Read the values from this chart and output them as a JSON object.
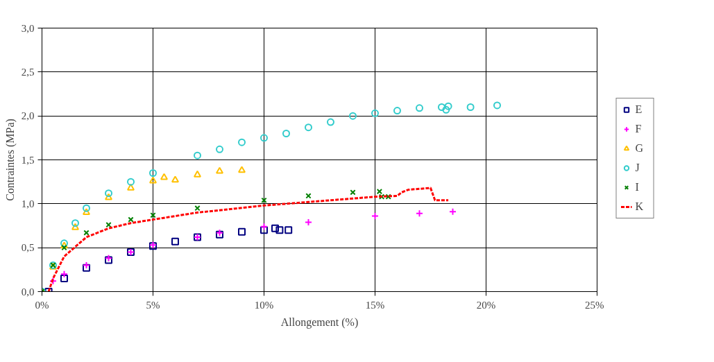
{
  "chart_data": {
    "type": "scatter",
    "xlabel": "Allongement (%)",
    "ylabel": "Contraintes (MPa)",
    "xlim": [
      0,
      25
    ],
    "ylim": [
      0,
      3
    ],
    "xticks": [
      {
        "value": 0,
        "label": "0%"
      },
      {
        "value": 5,
        "label": "5%"
      },
      {
        "value": 10,
        "label": "10%"
      },
      {
        "value": 15,
        "label": "15%"
      },
      {
        "value": 20,
        "label": "20%"
      },
      {
        "value": 25,
        "label": "25%"
      }
    ],
    "yticks": [
      {
        "value": 0,
        "label": "0,0"
      },
      {
        "value": 0.5,
        "label": "0,5"
      },
      {
        "value": 1,
        "label": "1,0"
      },
      {
        "value": 1.5,
        "label": "1,5"
      },
      {
        "value": 2,
        "label": "2,0"
      },
      {
        "value": 2.5,
        "label": "2,5"
      },
      {
        "value": 3,
        "label": "3,0"
      }
    ],
    "grid": true,
    "legend": "right",
    "series": [
      {
        "name": "E",
        "color": "#000080",
        "marker": "square",
        "x": [
          0.3,
          1,
          2,
          3,
          4,
          5,
          6,
          7,
          8,
          9,
          10,
          10.5,
          10.7,
          11.1
        ],
        "values": [
          0,
          0.15,
          0.27,
          0.36,
          0.45,
          0.52,
          0.57,
          0.62,
          0.65,
          0.68,
          0.7,
          0.72,
          0.7,
          0.7
        ]
      },
      {
        "name": "F",
        "color": "#ff00ff",
        "marker": "cross",
        "x": [
          0.5,
          1,
          2,
          3,
          4,
          5,
          7,
          8,
          10,
          12,
          15,
          17,
          18.5
        ],
        "values": [
          0.12,
          0.2,
          0.3,
          0.38,
          0.45,
          0.53,
          0.62,
          0.67,
          0.74,
          0.79,
          0.86,
          0.89,
          0.91
        ]
      },
      {
        "name": "G",
        "color": "#ffc000",
        "marker": "triangle",
        "x": [
          0,
          0.5,
          1,
          1.5,
          2,
          3,
          4,
          5,
          5.5,
          6,
          7,
          8,
          9
        ],
        "values": [
          0,
          0.28,
          0.52,
          0.73,
          0.9,
          1.07,
          1.18,
          1.26,
          1.3,
          1.27,
          1.33,
          1.37,
          1.38
        ]
      },
      {
        "name": "J",
        "color": "#33cccc",
        "marker": "circle",
        "x": [
          0,
          0.5,
          1,
          1.5,
          2,
          3,
          4,
          5,
          7,
          8,
          9,
          10,
          11,
          12,
          13,
          14,
          15,
          16,
          17,
          18,
          18.2,
          18.3,
          19.3,
          20.5
        ],
        "values": [
          0,
          0.3,
          0.55,
          0.78,
          0.95,
          1.12,
          1.25,
          1.35,
          1.55,
          1.62,
          1.7,
          1.75,
          1.8,
          1.87,
          1.93,
          2.0,
          2.03,
          2.06,
          2.09,
          2.1,
          2.07,
          2.11,
          2.1,
          2.12
        ]
      },
      {
        "name": "I",
        "color": "#008000",
        "marker": "x",
        "x": [
          0,
          0.5,
          1,
          2,
          3,
          4,
          5,
          7,
          10,
          12,
          14,
          15.2,
          15.3,
          15.6
        ],
        "values": [
          0,
          0.3,
          0.5,
          0.67,
          0.76,
          0.82,
          0.87,
          0.95,
          1.04,
          1.09,
          1.13,
          1.14,
          1.08,
          1.08
        ]
      },
      {
        "name": "K",
        "color": "#ff0000",
        "type": "line",
        "marker": "none",
        "line_style": "dashed",
        "x": [
          0.3,
          0.5,
          1,
          2,
          3,
          4,
          5,
          7,
          10,
          12,
          15,
          16,
          16.2,
          16.5,
          17.5,
          17.7,
          18.3
        ],
        "values": [
          0,
          0.15,
          0.4,
          0.62,
          0.72,
          0.78,
          0.82,
          0.9,
          0.98,
          1.02,
          1.08,
          1.09,
          1.13,
          1.16,
          1.18,
          1.04,
          1.04
        ]
      }
    ]
  }
}
